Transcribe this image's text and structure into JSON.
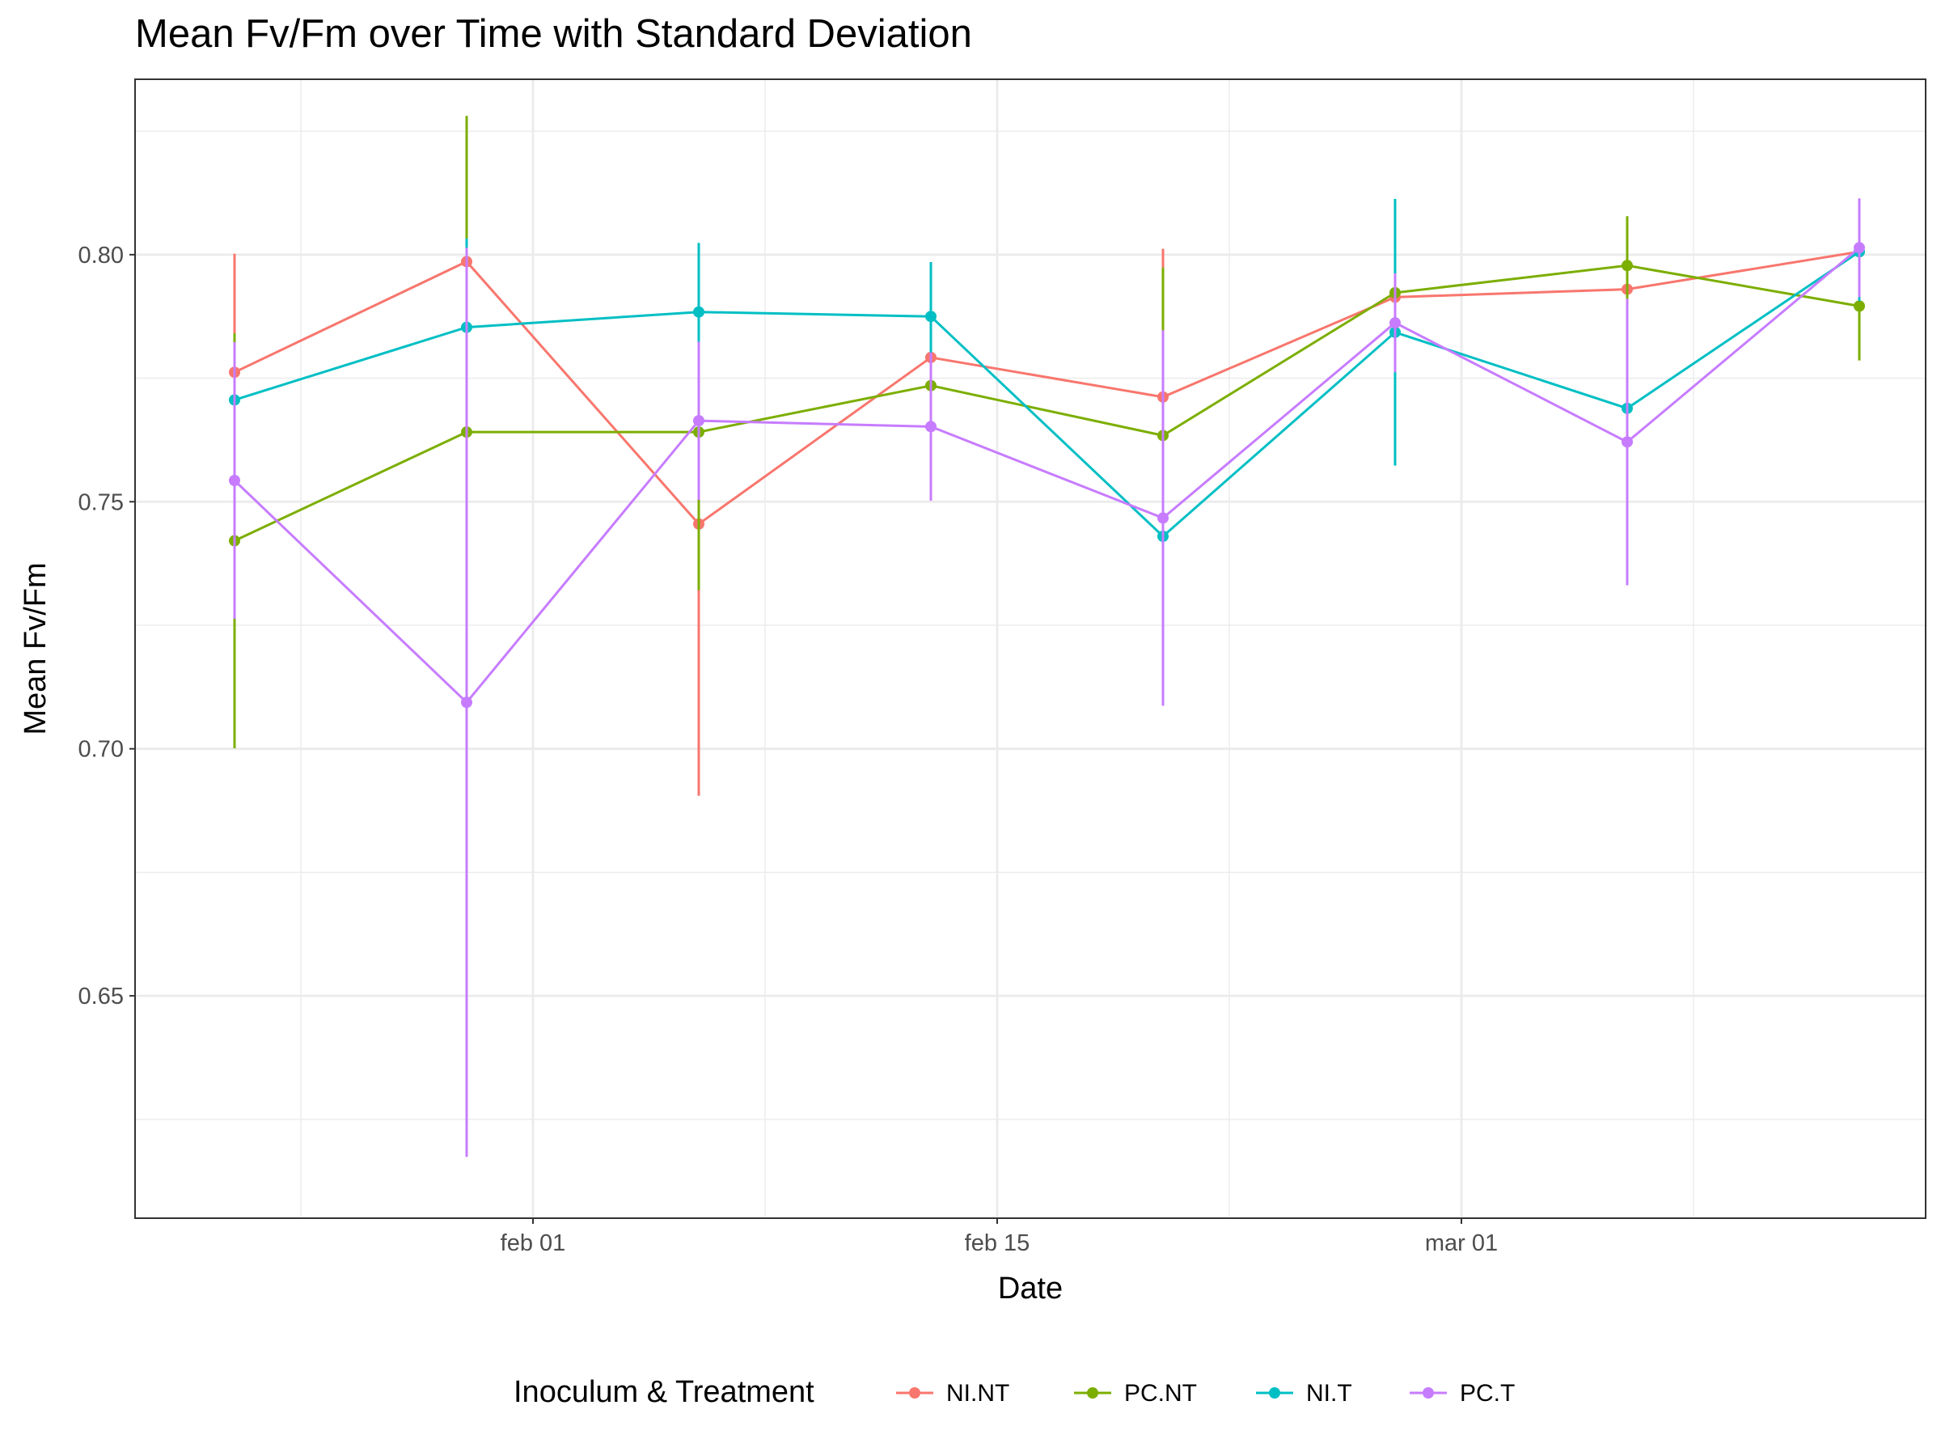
{
  "chart_data": {
    "type": "line",
    "title": "Mean Fv/Fm over Time with Standard Deviation",
    "xlabel": "Date",
    "ylabel": "Mean Fv/Fm",
    "x_ticks": [
      "feb 01",
      "feb 15",
      "mar 01"
    ],
    "y_ticks": [
      "0.65",
      "0.70",
      "0.75",
      "0.80"
    ],
    "ylim": [
      0.605,
      0.8355
    ],
    "xlim": [
      "2023-01-20",
      "2023-03-15"
    ],
    "grid": true,
    "legend_position": "bottom",
    "legend_title": "Inoculum & Treatment",
    "x": [
      "2023-01-23",
      "2023-01-30",
      "2023-02-06",
      "2023-02-13",
      "2023-02-20",
      "2023-02-27",
      "2023-03-06",
      "2023-03-13"
    ],
    "series": [
      {
        "name": "NI.NT",
        "color": "#F8766D",
        "values": [
          0.7762,
          0.7986,
          0.7455,
          0.7792,
          0.7712,
          0.7914,
          0.793,
          0.8006
        ],
        "sd": [
          0.024,
          0.016,
          0.055,
          0.015,
          0.03,
          0.008,
          0.006,
          0.01
        ]
      },
      {
        "name": "PC.NT",
        "color": "#7CAE00",
        "values": [
          0.7421,
          0.7641,
          0.7641,
          0.7735,
          0.7634,
          0.7923,
          0.7978,
          0.7896
        ],
        "sd": [
          0.042,
          0.064,
          0.032,
          0.009,
          0.034,
          0.008,
          0.01,
          0.011
        ]
      },
      {
        "name": "NI.T",
        "color": "#00BFC4",
        "values": [
          0.7706,
          0.7853,
          0.7884,
          0.7875,
          0.743,
          0.7843,
          0.7689,
          0.8006
        ],
        "sd": [
          0.011,
          0.018,
          0.014,
          0.011,
          0.012,
          0.027,
          0.008,
          0.01
        ]
      },
      {
        "name": "PC.T",
        "color": "#C77CFF",
        "values": [
          0.7543,
          0.7094,
          0.7664,
          0.7652,
          0.7467,
          0.7862,
          0.7621,
          0.8014
        ],
        "sd": [
          0.028,
          0.092,
          0.016,
          0.015,
          0.038,
          0.01,
          0.029,
          0.01
        ]
      }
    ]
  }
}
